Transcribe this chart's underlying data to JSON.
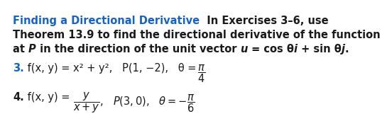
{
  "title_colored": "Finding a Directional Derivative",
  "title_color": "#1565C0",
  "header_rest1": "  In Exercises 3–6, use",
  "header_line2": "Theorem 13.9 to find the directional derivative of the function",
  "header_line3_a": "at ",
  "header_line3_b": "P",
  "header_line3_c": " in the direction of the unit vector ",
  "header_line3_d": "u",
  "header_line3_e": " = cos θ",
  "header_line3_f": "i",
  "header_line3_g": " + sin θ",
  "header_line3_h": "j",
  "header_line3_i": ".",
  "ex3_num": "3.",
  "ex3_num_color": "#1565C0",
  "ex3_body": " f(x, y) = x² + y²,   P(1, −2),   θ = π/4",
  "ex4_num": "4.",
  "ex4_body": " f(x, y) = y/(x + y),   P(3, 0),   θ = −π/6",
  "background_color": "#ffffff",
  "text_color": "#1a1a1a",
  "fontsize": 10.5
}
